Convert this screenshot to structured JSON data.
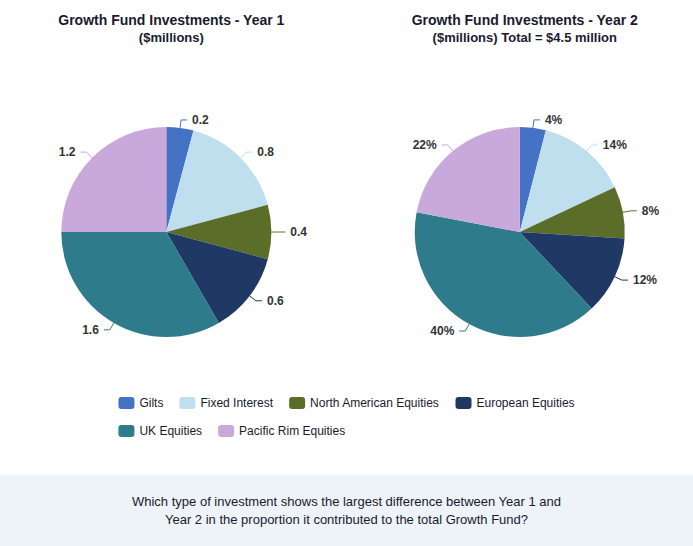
{
  "chart_data": [
    {
      "type": "pie",
      "title": "Growth Fund Investments - Year 1",
      "subtitle": "($millions)",
      "categories": [
        "Gilts",
        "Fixed Interest",
        "North American Equities",
        "European Equities",
        "UK Equities",
        "Pacific Rim Equities"
      ],
      "values": [
        0.2,
        0.8,
        0.4,
        0.6,
        1.6,
        1.2
      ],
      "colors": [
        "#4472C4",
        "#BFDFEE",
        "#5A6E2A",
        "#1F3864",
        "#2E7B8C",
        "#C9A8DC"
      ],
      "data_labels": true,
      "legend": "bottom"
    },
    {
      "type": "pie",
      "title": "Growth Fund Investments - Year 2",
      "subtitle": "($millions) Total = $4.5 million",
      "categories": [
        "Gilts",
        "Fixed Interest",
        "North American Equities",
        "European Equities",
        "UK Equities",
        "Pacific Rim Equities"
      ],
      "values": [
        4,
        14,
        8,
        12,
        40,
        22
      ],
      "value_labels": [
        "4%",
        "14%",
        "8%",
        "12%",
        "40%",
        "22%"
      ],
      "colors": [
        "#4472C4",
        "#BFDFEE",
        "#5A6E2A",
        "#1F3864",
        "#2E7B8C",
        "#C9A8DC"
      ],
      "data_labels": true,
      "legend": "bottom",
      "annotation": "Which type of investment shows the largest difference between Year 1 and\nYear 2 in the proportion it contributed to the total Growth Fund?"
    }
  ]
}
